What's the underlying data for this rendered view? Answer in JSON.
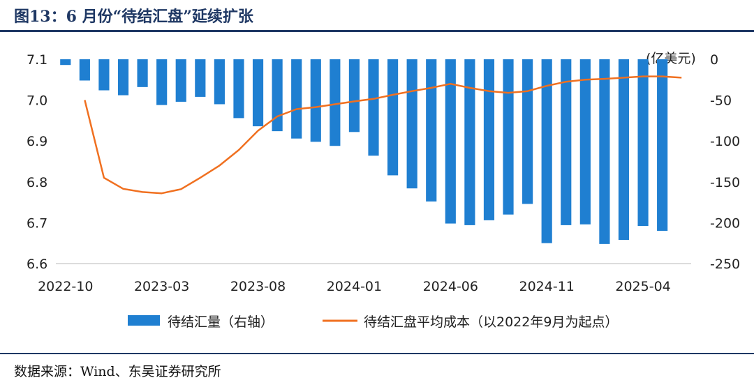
{
  "header": {
    "title": "图13：6 月份“待结汇盘”延续扩张"
  },
  "footer": {
    "source": "数据来源：Wind、东吴证券研究所"
  },
  "colors": {
    "bar": "#1F7FD1",
    "line": "#F07020",
    "title": "#1F3864"
  },
  "chart_data": {
    "type": "bar+line",
    "left_axis": {
      "ylim": [
        6.6,
        7.1
      ],
      "ticks": [
        "7.1",
        "7.0",
        "6.9",
        "6.8",
        "6.7",
        "6.6"
      ]
    },
    "right_axis": {
      "ylim": [
        -250,
        0
      ],
      "ticks": [
        "0",
        "-50",
        "-100",
        "-150",
        "-200",
        "-250"
      ],
      "unit": "(亿美元)"
    },
    "x_tick_labels": [
      "2022-10",
      "2023-03",
      "2023-08",
      "2024-01",
      "2024-06",
      "2024-11",
      "2025-04"
    ],
    "categories": [
      "2022-10",
      "2022-11",
      "2022-12",
      "2023-01",
      "2023-02",
      "2023-03",
      "2023-04",
      "2023-05",
      "2023-06",
      "2023-07",
      "2023-08",
      "2023-09",
      "2023-10",
      "2023-11",
      "2023-12",
      "2024-01",
      "2024-02",
      "2024-03",
      "2024-04",
      "2024-05",
      "2024-06",
      "2024-07",
      "2024-08",
      "2024-09",
      "2024-10",
      "2024-11",
      "2024-12",
      "2025-01",
      "2025-02",
      "2025-03",
      "2025-04",
      "2025-05",
      "2025-06"
    ],
    "series": [
      {
        "name": "待结汇量（右轴）",
        "type": "bar",
        "axis": "right",
        "values": [
          -7,
          -26,
          -38,
          -44,
          -34,
          -56,
          -52,
          -46,
          -55,
          -72,
          -82,
          -88,
          -97,
          -101,
          -106,
          -89,
          -118,
          -142,
          -158,
          -174,
          -201,
          -203,
          -197,
          -190,
          -177,
          -225,
          -203,
          -202,
          -226,
          -221,
          -204,
          -210,
          null
        ]
      },
      {
        "name": "待结汇盘平均成本（以2022年9月为起点）",
        "type": "line",
        "axis": "left",
        "values": [
          null,
          7.0,
          6.81,
          6.783,
          6.775,
          6.772,
          6.782,
          6.81,
          6.84,
          6.878,
          6.925,
          6.96,
          6.978,
          6.983,
          6.99,
          6.997,
          7.003,
          7.013,
          7.022,
          7.03,
          7.04,
          7.03,
          7.022,
          7.018,
          7.022,
          7.035,
          7.045,
          7.05,
          7.052,
          7.055,
          7.058,
          7.058,
          7.055
        ]
      }
    ],
    "legend": {
      "position": "bottom"
    },
    "grid": false
  }
}
